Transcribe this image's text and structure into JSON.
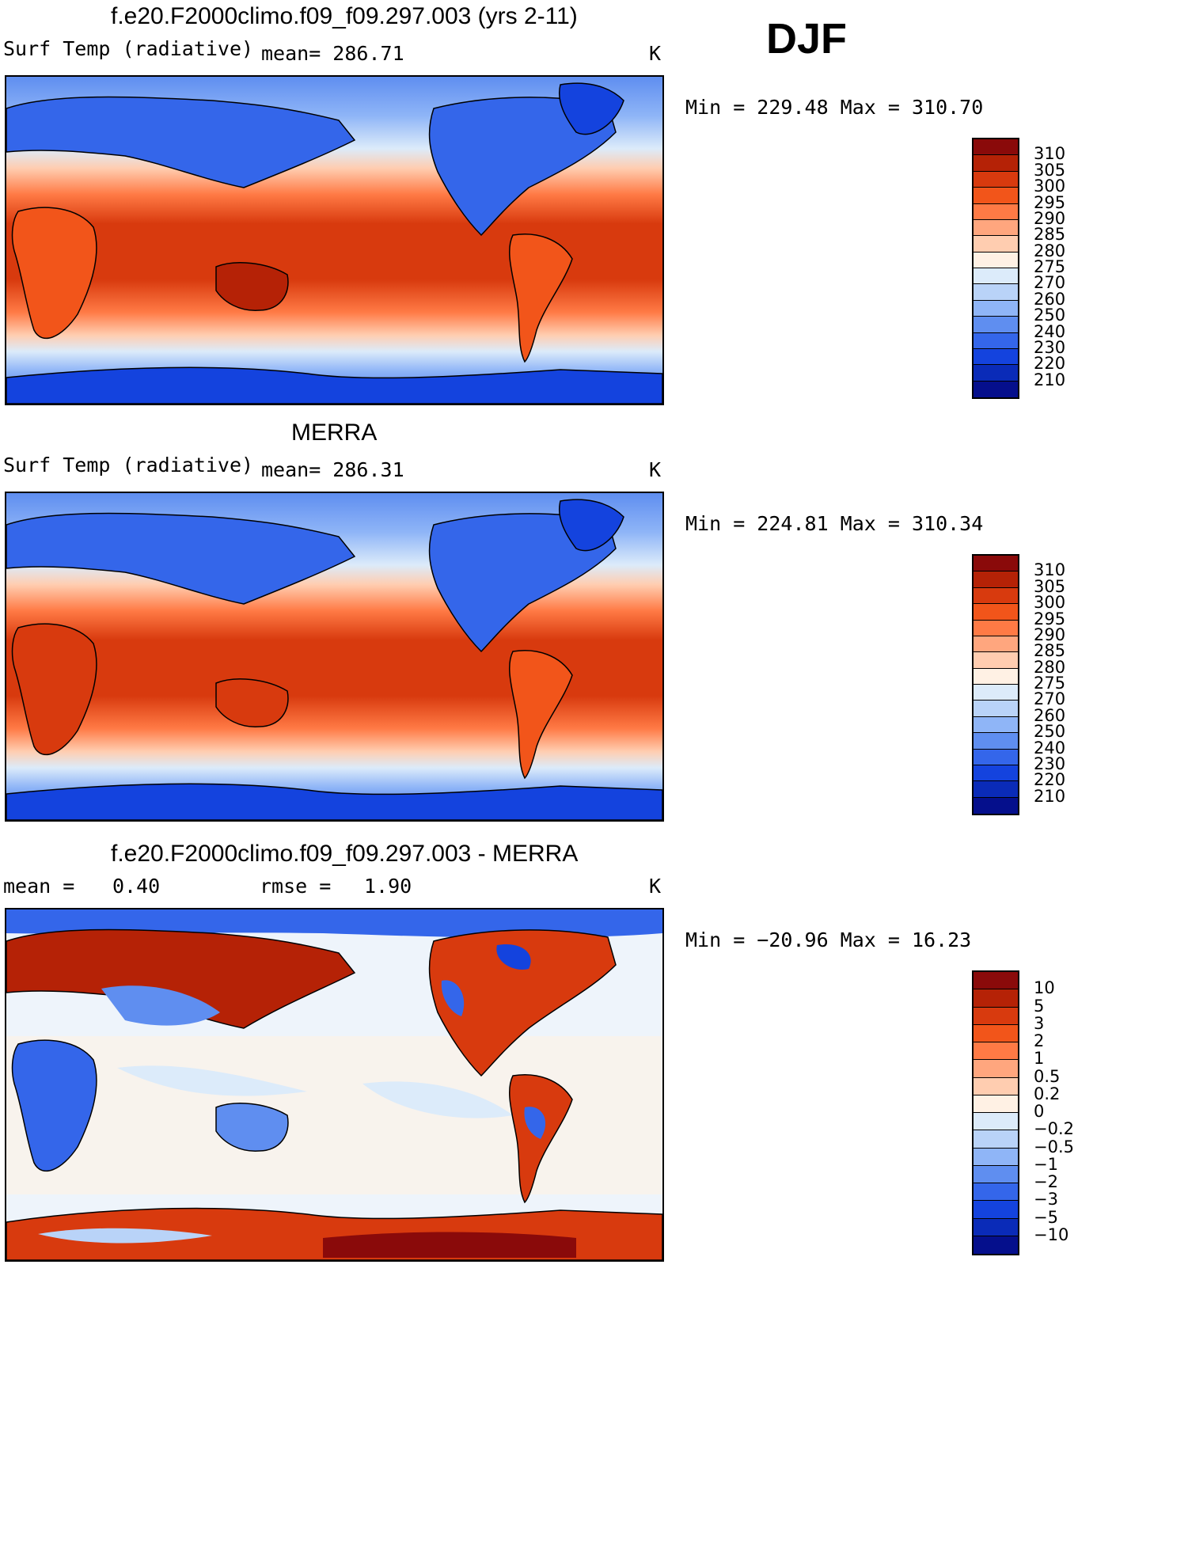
{
  "season": "DJF",
  "units": "K",
  "panels": [
    {
      "title": "f.e20.F2000climo.f09_f09.297.003 (yrs 2-11)",
      "variable": "Surf Temp (radiative)",
      "mean_label": "mean= 286.71",
      "units": "K",
      "minmax": "Min = 229.48 Max = 310.70"
    },
    {
      "title": "MERRA",
      "variable": "Surf Temp (radiative)",
      "mean_label": "mean= 286.31",
      "units": "K",
      "minmax": "Min = 224.81 Max = 310.34"
    },
    {
      "title": "f.e20.F2000climo.f09_f09.297.003 - MERRA",
      "mean_label": "mean =",
      "mean_value": "0.40",
      "rmse_label": "rmse =",
      "rmse_value": "1.90",
      "units": "K",
      "minmax": "Min = −20.96 Max =  16.23"
    }
  ],
  "colorbar_abs": {
    "labels": [
      "310",
      "305",
      "300",
      "295",
      "290",
      "285",
      "280",
      "275",
      "270",
      "260",
      "250",
      "240",
      "230",
      "220",
      "210"
    ],
    "colors": [
      "#8a0a0a",
      "#b52206",
      "#d83a0e",
      "#f2551a",
      "#ff7a45",
      "#ffa67e",
      "#ffcdb0",
      "#fff1e4",
      "#dcebfa",
      "#b9d3f8",
      "#8fb5f7",
      "#5f8ef0",
      "#3466ea",
      "#1443de",
      "#0a2bb8",
      "#050f8c"
    ]
  },
  "colorbar_diff": {
    "labels": [
      "10",
      "5",
      "3",
      "2",
      "1",
      "0.5",
      "0.2",
      "0",
      "−0.2",
      "−0.5",
      "−1",
      "−2",
      "−3",
      "−5",
      "−10"
    ],
    "colors": [
      "#8a0a0a",
      "#b52206",
      "#d83a0e",
      "#f2551a",
      "#ff7a45",
      "#ffa67e",
      "#ffcdb0",
      "#fff1e4",
      "#dcebfa",
      "#b9d3f8",
      "#8fb5f7",
      "#5f8ef0",
      "#3466ea",
      "#1443de",
      "#0a2bb8",
      "#050f8c"
    ]
  }
}
